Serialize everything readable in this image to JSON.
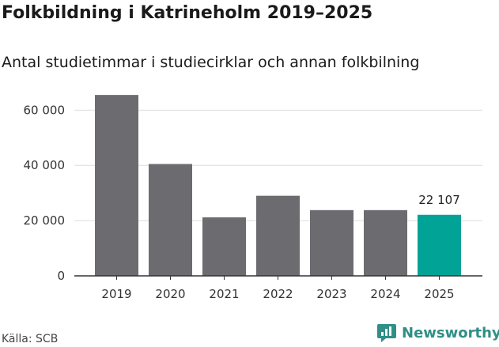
{
  "header": {
    "title": "Folkbildning i Katrineholm 2019–2025",
    "subtitle": "Antal studietimmar i studiecirklar och annan folkbilning"
  },
  "footer": {
    "source": "Källa: SCB",
    "brand": "Newsworthy"
  },
  "colors": {
    "bar": "#6c6b70",
    "highlight": "#00a396",
    "grid": "#dddddd",
    "axis": "#333333",
    "brand": "#2f8f86"
  },
  "chart_data": {
    "type": "bar",
    "title": "Folkbildning i Katrineholm 2019–2025",
    "subtitle": "Antal studietimmar i studiecirklar och annan folkbilning",
    "categories": [
      "2019",
      "2020",
      "2021",
      "2022",
      "2023",
      "2024",
      "2025"
    ],
    "values": [
      65500,
      40500,
      21200,
      29000,
      23800,
      23800,
      22107
    ],
    "highlight_index": 6,
    "annotation": {
      "index": 6,
      "label": "22 107"
    },
    "yticks": [
      0,
      20000,
      40000,
      60000
    ],
    "ytick_labels": [
      "0",
      "20 000",
      "40 000",
      "60 000"
    ],
    "ylim": [
      0,
      70000
    ],
    "xlabel": "",
    "ylabel": "",
    "grid": true
  }
}
